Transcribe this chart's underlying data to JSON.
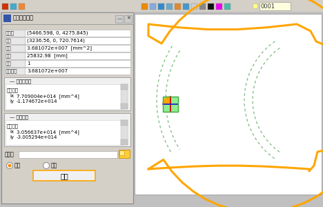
{
  "bg_color": "#c0c0c0",
  "dialog_title": "查询面积属性",
  "fields": [
    {
      "label": "参考点",
      "value": "(5466.598, 0, 4275.845)"
    },
    {
      "label": "形心",
      "value": "(3236.56, 0, 720.7614)"
    },
    {
      "label": "面积",
      "value": "3.681072e+007  [mm^2]"
    },
    {
      "label": "周长",
      "value": "25832.98  [mm]"
    },
    {
      "label": "密度",
      "value": "1"
    },
    {
      "label": "面积质量",
      "value": "3.681072e+007"
    }
  ],
  "section1_title": "参考点惯性",
  "section1_sub": "转动惯量",
  "section1_ix": "7.709004e+014  [mm^4]",
  "section1_iy": "-1.174672e+014",
  "section2_title": "质心惯性",
  "section2_sub": "转动惯量",
  "section2_ix": "3.056637e+014  [mm^4]",
  "section2_iy": "-3.005294e+014",
  "output_label": "到文件",
  "radio1": "重写",
  "radio2": "附加",
  "ok_button": "确定",
  "shape_color": "#FFA500",
  "dashed_color": "#7CB97C",
  "label_0001": "0001"
}
